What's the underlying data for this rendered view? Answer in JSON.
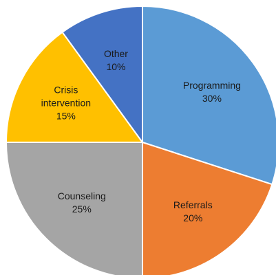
{
  "chart_data": {
    "type": "pie",
    "categories": [
      "Programming",
      "Referrals",
      "Counseling",
      "Crisis intervention",
      "Other"
    ],
    "values": [
      30,
      20,
      25,
      15,
      10
    ],
    "value_labels": [
      "30%",
      "20%",
      "25%",
      "15%",
      "10%"
    ],
    "colors": [
      "#5b9bd5",
      "#ed7d31",
      "#a5a5a5",
      "#ffc000",
      "#4472c4"
    ]
  }
}
